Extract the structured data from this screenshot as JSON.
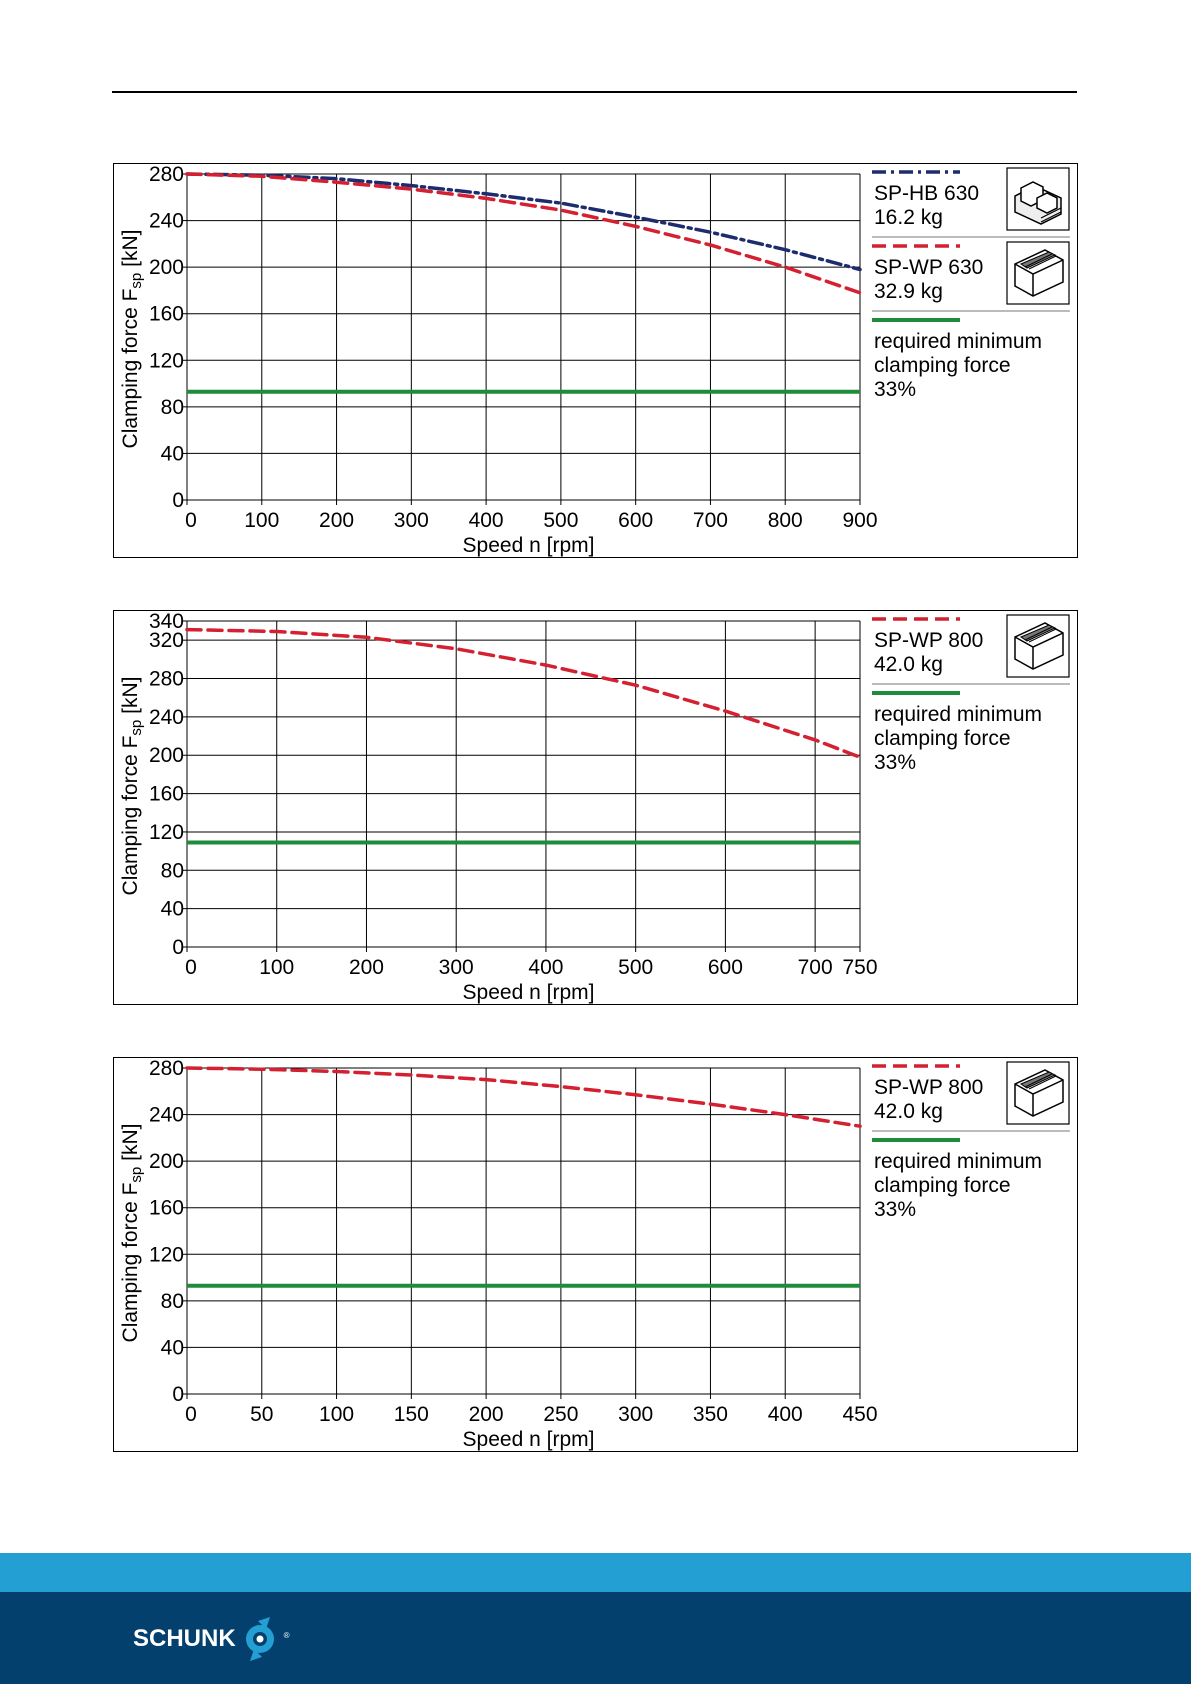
{
  "colors": {
    "hb": "#1c2c6e",
    "wp": "#d42030",
    "min": "#1e8c3a",
    "footer_light": "#239fd4",
    "footer_dark": "#03406e",
    "grid": "#000000"
  },
  "icons": {
    "hb_jaw": "hard-jaw-icon",
    "wp_jaw": "soft-jaw-icon",
    "logo": "schunk-logo-icon"
  },
  "footer": {
    "brand": "SCHUNK",
    "registered": "®"
  },
  "chart_data": [
    {
      "type": "line",
      "title": "",
      "xlabel": "Speed n [rpm]",
      "ylabel": "Clamping force F",
      "ylabel_sub": "sp",
      "ylabel_unit": " [kN]",
      "xlim": [
        0,
        900
      ],
      "ylim": [
        0,
        280
      ],
      "xticks": [
        0,
        100,
        200,
        300,
        400,
        500,
        600,
        700,
        800,
        900
      ],
      "yticks": [
        0,
        40,
        80,
        120,
        160,
        200,
        240,
        280
      ],
      "grid": true,
      "legend": "right",
      "series": [
        {
          "name": "SP-HB 630",
          "label_line1": "SP-HB 630",
          "label_line2": "16.2 kg",
          "style": "dashdot",
          "color_key": "hb",
          "icon": "hard-jaw-icon",
          "x": [
            0,
            100,
            200,
            300,
            400,
            500,
            600,
            700,
            800,
            900
          ],
          "y": [
            280,
            279,
            276,
            270,
            263,
            255,
            243,
            230,
            215,
            198
          ]
        },
        {
          "name": "SP-WP 630",
          "label_line1": "SP-WP 630",
          "label_line2": "32.9 kg",
          "style": "dashed",
          "color_key": "wp",
          "icon": "soft-jaw-icon",
          "x": [
            0,
            100,
            200,
            300,
            400,
            500,
            600,
            700,
            800,
            900
          ],
          "y": [
            280,
            278,
            273,
            267,
            259,
            249,
            235,
            219,
            200,
            178
          ]
        },
        {
          "name": "required minimum clamping force 33%",
          "label_lines": [
            "required minimum",
            "clamping force",
            "33%"
          ],
          "style": "solid",
          "color_key": "min",
          "x": [
            0,
            900
          ],
          "y": [
            93,
            93
          ]
        }
      ]
    },
    {
      "type": "line",
      "title": "",
      "xlabel": "Speed n [rpm]",
      "ylabel": "Clamping force F",
      "ylabel_sub": "sp",
      "ylabel_unit": " [kN]",
      "xlim": [
        0,
        750
      ],
      "ylim": [
        0,
        340
      ],
      "xticks": [
        0,
        100,
        200,
        300,
        400,
        500,
        600,
        700,
        750
      ],
      "yticks": [
        0,
        40,
        80,
        120,
        160,
        200,
        240,
        280,
        320,
        340
      ],
      "grid": true,
      "legend": "right",
      "series": [
        {
          "name": "SP-WP 800",
          "label_line1": "SP-WP 800",
          "label_line2": "42.0 kg",
          "style": "dashed",
          "color_key": "wp",
          "icon": "soft-jaw-icon",
          "x": [
            0,
            100,
            200,
            300,
            400,
            500,
            600,
            700,
            750
          ],
          "y": [
            331,
            329,
            323,
            311,
            294,
            273,
            246,
            216,
            198
          ]
        },
        {
          "name": "required minimum clamping force 33%",
          "label_lines": [
            "required minimum",
            "clamping force",
            "33%"
          ],
          "style": "solid",
          "color_key": "min",
          "x": [
            0,
            750
          ],
          "y": [
            109,
            109
          ]
        }
      ]
    },
    {
      "type": "line",
      "title": "",
      "xlabel": "Speed n [rpm]",
      "ylabel": "Clamping force F",
      "ylabel_sub": "sp",
      "ylabel_unit": " [kN]",
      "xlim": [
        0,
        450
      ],
      "ylim": [
        0,
        280
      ],
      "xticks": [
        0,
        50,
        100,
        150,
        200,
        250,
        300,
        350,
        400,
        450
      ],
      "yticks": [
        0,
        40,
        80,
        120,
        160,
        200,
        240,
        280
      ],
      "grid": true,
      "legend": "right",
      "series": [
        {
          "name": "SP-WP 800",
          "label_line1": "SP-WP 800",
          "label_line2": "42.0 kg",
          "style": "dashed",
          "color_key": "wp",
          "icon": "soft-jaw-icon",
          "x": [
            0,
            50,
            100,
            150,
            200,
            250,
            300,
            350,
            400,
            450
          ],
          "y": [
            280,
            279,
            277,
            274,
            270,
            264,
            257,
            249,
            240,
            230
          ]
        },
        {
          "name": "required minimum clamping force 33%",
          "label_lines": [
            "required minimum",
            "clamping force",
            "33%"
          ],
          "style": "solid",
          "color_key": "min",
          "x": [
            0,
            450
          ],
          "y": [
            93,
            93
          ]
        }
      ]
    }
  ]
}
